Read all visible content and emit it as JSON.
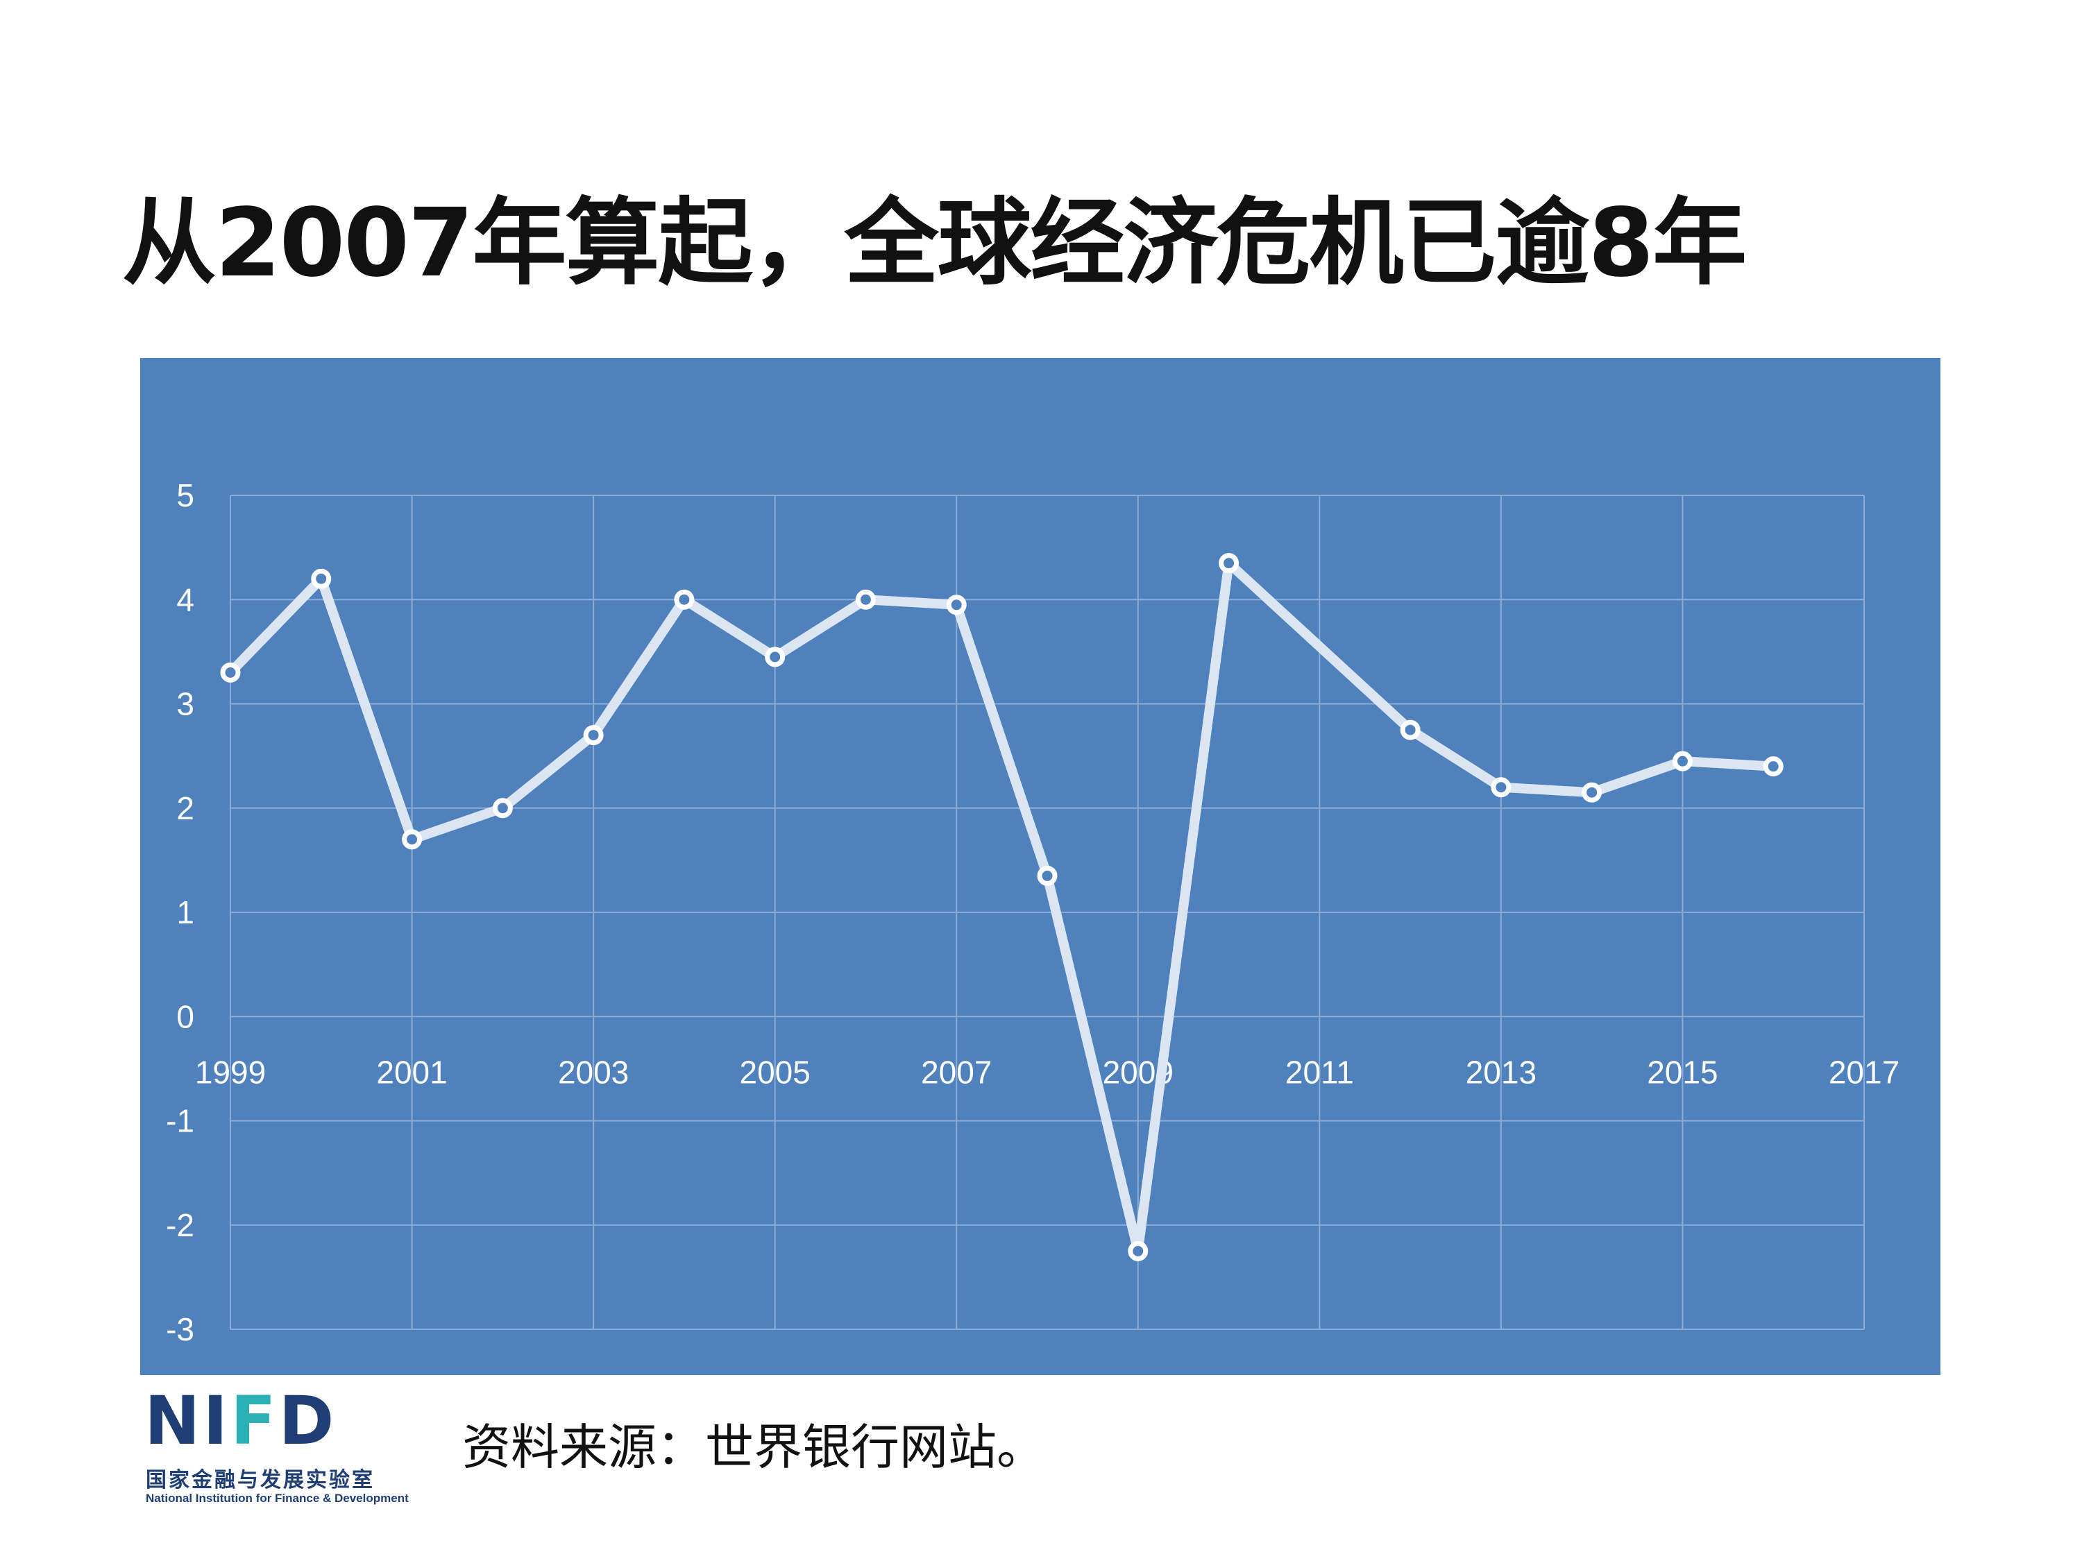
{
  "title": "从2007年算起，全球经济危机已逾8年",
  "source": "资料来源：世界银行网站。",
  "logo": {
    "mark_left": "NI",
    "mark_accent": "F",
    "mark_right": "D",
    "cn_name": "国家金融与发展实验室",
    "en_name": "National Institution for Finance & Development"
  },
  "colors": {
    "panel_bg": "#4f81bd",
    "line": "#dce6f2",
    "grid": "#8eabd6",
    "text": "#ffffff"
  },
  "chart_data": {
    "type": "line",
    "title": "",
    "xlabel": "",
    "ylabel": "",
    "xlim": [
      1999,
      2017
    ],
    "ylim": [
      -3,
      5
    ],
    "x_ticks": [
      "1999",
      "2001",
      "2003",
      "2005",
      "2007",
      "2009",
      "2011",
      "2013",
      "2015",
      "2017"
    ],
    "y_ticks": [
      "5",
      "4",
      "3",
      "2",
      "1",
      "0",
      "-1",
      "-2",
      "-3"
    ],
    "grid": true,
    "legend": "none",
    "series": [
      {
        "x": [
          1999,
          2000,
          2001,
          2002,
          2003,
          2004,
          2005,
          2006,
          2007,
          2008,
          2009,
          2010,
          2012,
          2013,
          2014,
          2015,
          2016
        ],
        "y": [
          3.3,
          4.2,
          1.7,
          2.0,
          2.7,
          4.0,
          3.45,
          4.0,
          3.95,
          1.35,
          -2.25,
          4.35,
          2.75,
          2.2,
          2.15,
          2.45,
          2.4
        ]
      }
    ]
  }
}
